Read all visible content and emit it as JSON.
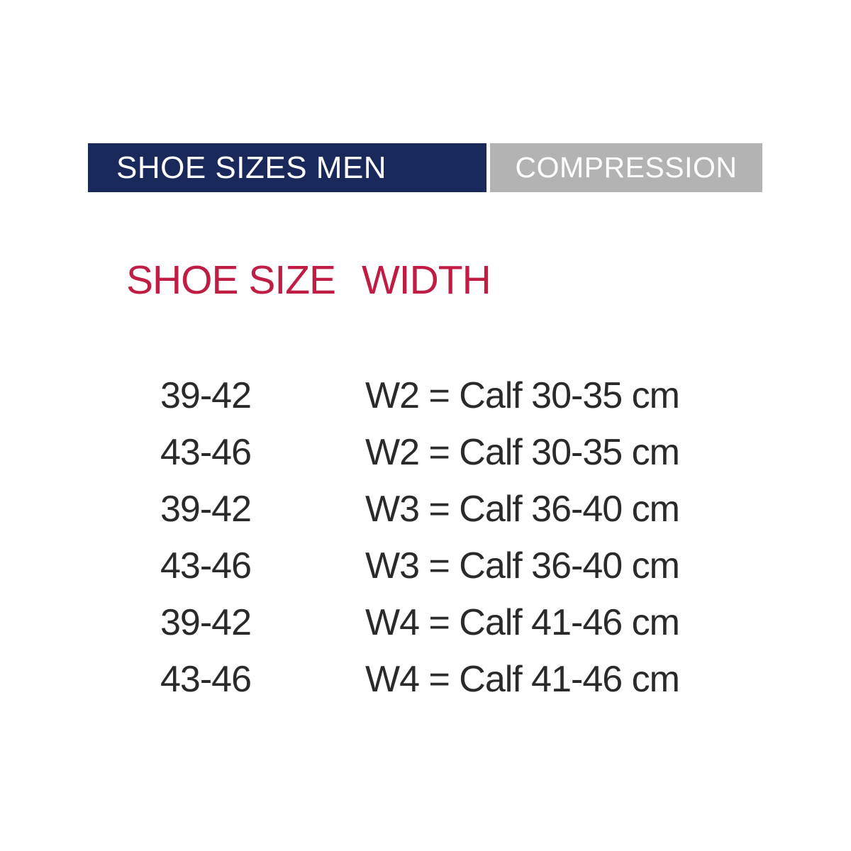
{
  "header": {
    "left_label": "SHOE SIZES MEN",
    "right_label": "COMPRESSION"
  },
  "colors": {
    "navy": "#19295c",
    "gray": "#b3b3b3",
    "red": "#c01d45",
    "row_text": "#2a2a2a",
    "header_text": "#ffffff",
    "background": "#ffffff"
  },
  "chart_data": {
    "type": "table",
    "title": "SHOE SIZES MEN – COMPRESSION",
    "columns": [
      "SHOE SIZE",
      "WIDTH"
    ],
    "rows": [
      [
        "39-42",
        "W2 = Calf 30-35 cm"
      ],
      [
        "43-46",
        "W2 = Calf 30-35 cm"
      ],
      [
        "39-42",
        "W3 = Calf 36-40 cm"
      ],
      [
        "43-46",
        "W3 = Calf 36-40 cm"
      ],
      [
        "39-42",
        "W4 = Calf 41-46 cm"
      ],
      [
        "43-46",
        "W4 = Calf 41-46 cm"
      ]
    ]
  }
}
